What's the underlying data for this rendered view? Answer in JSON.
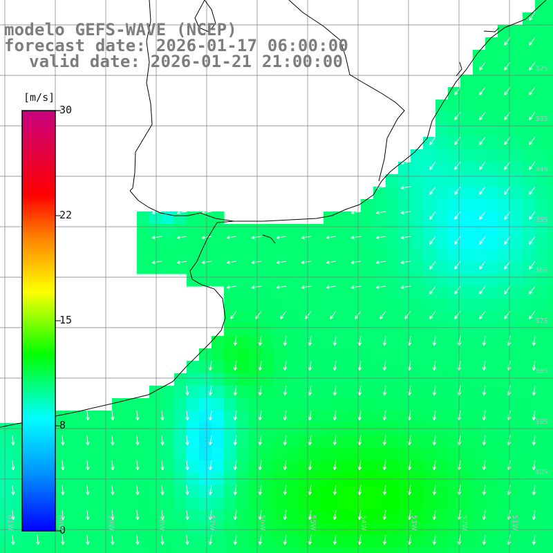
{
  "title": {
    "model": "modelo GEFS-WAVE (NCEP)",
    "forecast_date": "forecast date: 2026-01-17 06:00:00",
    "valid_date": "valid date: 2026-01-21 21:00:00"
  },
  "colorbar": {
    "unit": "[m/s]",
    "ticks": [
      "0",
      "8",
      "15",
      "22",
      "30"
    ],
    "range": [
      0,
      30
    ],
    "colors": [
      "#0000ff",
      "#0096ff",
      "#00ffff",
      "#00ff00",
      "#ffff00",
      "#ff8000",
      "#ff0000",
      "#c80080"
    ]
  },
  "map": {
    "lat_labels": [
      "32S",
      "33S",
      "34S",
      "35S",
      "36S",
      "37S",
      "38S",
      "39S",
      "40S"
    ],
    "lon_labels": [
      "61W",
      "60W",
      "59W",
      "58W",
      "57W",
      "56W",
      "55W",
      "54W",
      "53W",
      "52W",
      "51W"
    ],
    "land_color": "#ffffff",
    "grid_color": "#7a7a7a",
    "coast_color": "#000000",
    "arrow_color": "#ffffff"
  }
}
